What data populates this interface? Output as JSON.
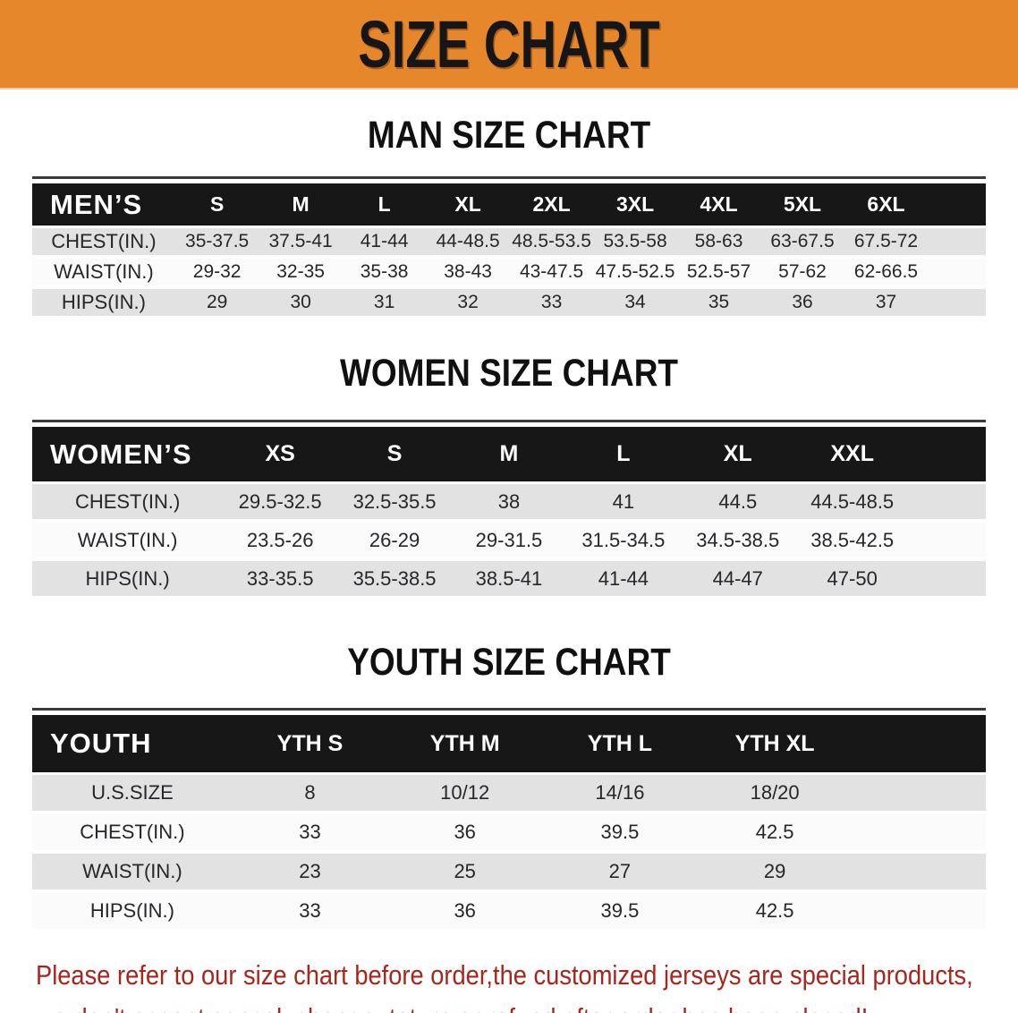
{
  "banner": {
    "title": "SIZE CHART"
  },
  "colors": {
    "banner_bg": "#E6872B",
    "header_bar": "#171717",
    "row_gray": "#E2E2E2",
    "note_red": "#A8251C"
  },
  "sections": {
    "men": {
      "heading": "MAN SIZE CHART"
    },
    "women": {
      "heading": "WOMEN SIZE CHART"
    },
    "youth": {
      "heading": "YOUTH SIZE CHART"
    }
  },
  "tables": {
    "men": {
      "label": "MEN’S",
      "sizes": [
        "S",
        "M",
        "L",
        "XL",
        "2XL",
        "3XL",
        "4XL",
        "5XL",
        "6XL"
      ],
      "rows": [
        {
          "label": "CHEST(IN.)",
          "values": [
            "35-37.5",
            "37.5-41",
            "41-44",
            "44-48.5",
            "48.5-53.5",
            "53.5-58",
            "58-63",
            "63-67.5",
            "67.5-72"
          ]
        },
        {
          "label": "WAIST(IN.)",
          "values": [
            "29-32",
            "32-35",
            "35-38",
            "38-43",
            "43-47.5",
            "47.5-52.5",
            "52.5-57",
            "57-62",
            "62-66.5"
          ]
        },
        {
          "label": "HIPS(IN.)",
          "values": [
            "29",
            "30",
            "31",
            "32",
            "33",
            "34",
            "35",
            "36",
            "37"
          ]
        }
      ]
    },
    "women": {
      "label": "WOMEN’S",
      "sizes": [
        "XS",
        "S",
        "M",
        "L",
        "XL",
        "XXL"
      ],
      "rows": [
        {
          "label": "CHEST(IN.)",
          "values": [
            "29.5-32.5",
            "32.5-35.5",
            "38",
            "41",
            "44.5",
            "44.5-48.5"
          ]
        },
        {
          "label": "WAIST(IN.)",
          "values": [
            "23.5-26",
            "26-29",
            "29-31.5",
            "31.5-34.5",
            "34.5-38.5",
            "38.5-42.5"
          ]
        },
        {
          "label": "HIPS(IN.)",
          "values": [
            "33-35.5",
            "35.5-38.5",
            "38.5-41",
            "41-44",
            "44-47",
            "47-50"
          ]
        }
      ]
    },
    "youth": {
      "label": "YOUTH",
      "sizes": [
        "YTH S",
        "YTH M",
        "YTH L",
        "YTH XL"
      ],
      "rows": [
        {
          "label": "U.S.SIZE",
          "values": [
            "8",
            "10/12",
            "14/16",
            "18/20"
          ]
        },
        {
          "label": "CHEST(IN.)",
          "values": [
            "33",
            "36",
            "39.5",
            "42.5"
          ]
        },
        {
          "label": "WAIST(IN.)",
          "values": [
            "23",
            "25",
            "27",
            "29"
          ]
        },
        {
          "label": "HIPS(IN.)",
          "values": [
            "33",
            "36",
            "39.5",
            "42.5"
          ]
        }
      ]
    }
  },
  "note": {
    "line1": "Please refer to our size chart before order,the customized jerseys are special products,",
    "line2": "we don't accept cancel, change, teturn or refund after order has been placed!"
  }
}
